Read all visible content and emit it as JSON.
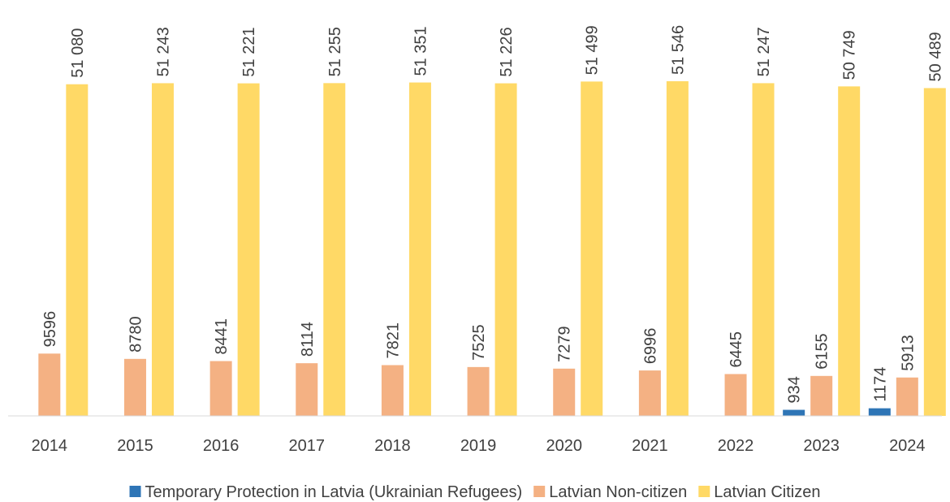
{
  "chart_data": {
    "type": "bar",
    "categories": [
      "2014",
      "2015",
      "2016",
      "2017",
      "2018",
      "2019",
      "2020",
      "2021",
      "2022",
      "2023",
      "2024"
    ],
    "series": [
      {
        "name": "Temporary Protection in Latvia (Ukrainian Refugees)",
        "color": "#2e75b6",
        "values": [
          null,
          null,
          null,
          null,
          null,
          null,
          null,
          null,
          null,
          934,
          1174
        ]
      },
      {
        "name": "Latvian Non-citizen",
        "color": "#f4b183",
        "values": [
          9596,
          8780,
          8441,
          8114,
          7821,
          7525,
          7279,
          6996,
          6445,
          6155,
          5913
        ]
      },
      {
        "name": "Latvian Citizen",
        "color": "#ffd966",
        "values": [
          51080,
          51243,
          51221,
          51255,
          51351,
          51226,
          51499,
          51546,
          51247,
          50749,
          50489
        ],
        "value_labels": [
          "51 080",
          "51 243",
          "51 221",
          "51 255",
          "51 351",
          "51 226",
          "51 499",
          "51 546",
          "51 247",
          "50 749",
          "50 489"
        ]
      }
    ],
    "legend": "bottom"
  }
}
